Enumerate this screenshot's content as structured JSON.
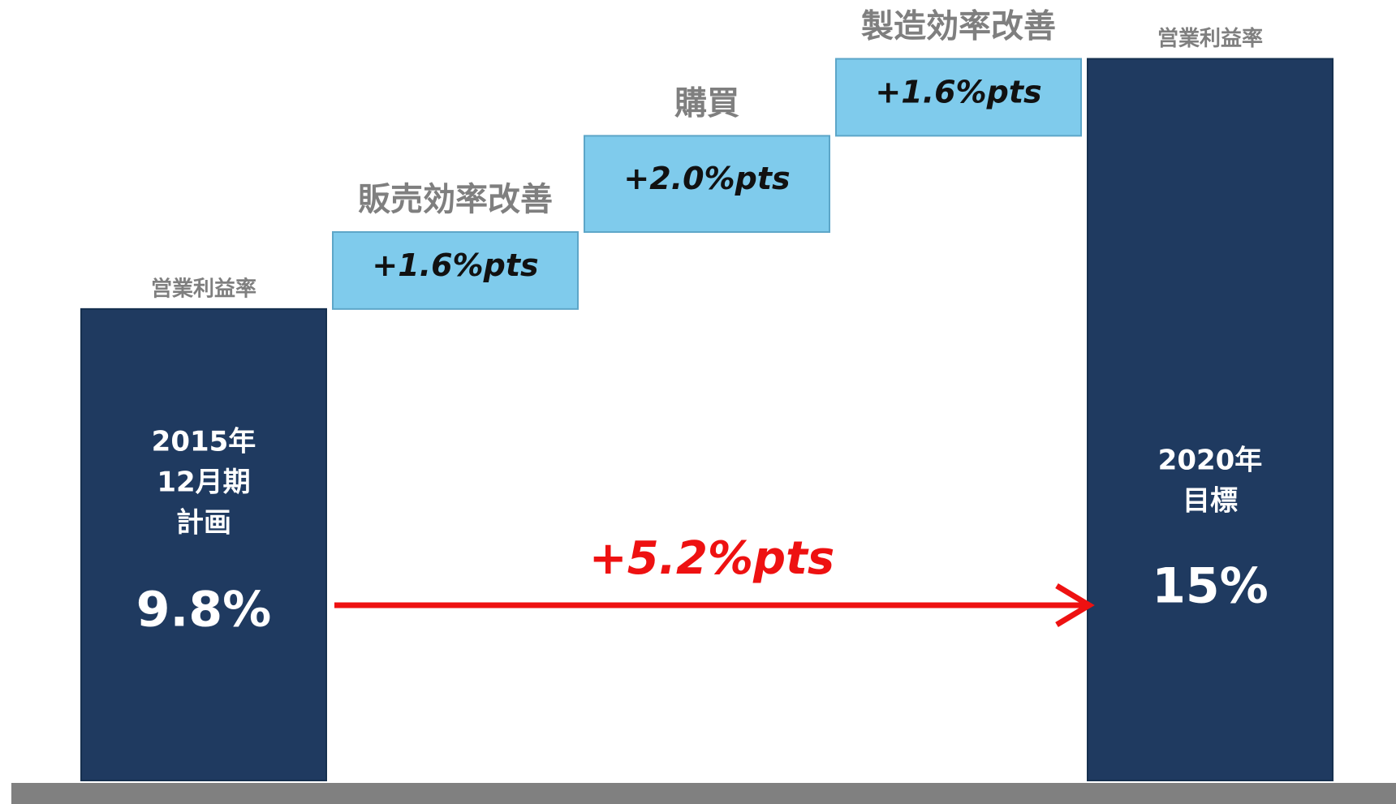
{
  "chart_data": {
    "type": "waterfall",
    "categories": [
      "営業利益率",
      "販売効率改善",
      "購買",
      "製造効率改善",
      "営業利益率"
    ],
    "measure": [
      "total",
      "relative",
      "relative",
      "relative",
      "total"
    ],
    "values": [
      9.8,
      1.6,
      2.0,
      1.6,
      15
    ],
    "value_labels": [
      "9.8%",
      "+1.6%pts",
      "+2.0%pts",
      "+1.6%pts",
      "15%"
    ],
    "bar_text": [
      [
        "2015年",
        "12月期",
        "計画"
      ],
      null,
      null,
      null,
      [
        "2020年",
        "目標"
      ]
    ],
    "total_color": "#1f3a60",
    "step_color": "#7fcbec",
    "change": {
      "value": 5.2,
      "label": "+5.2%pts",
      "color": "#ee1111"
    }
  }
}
